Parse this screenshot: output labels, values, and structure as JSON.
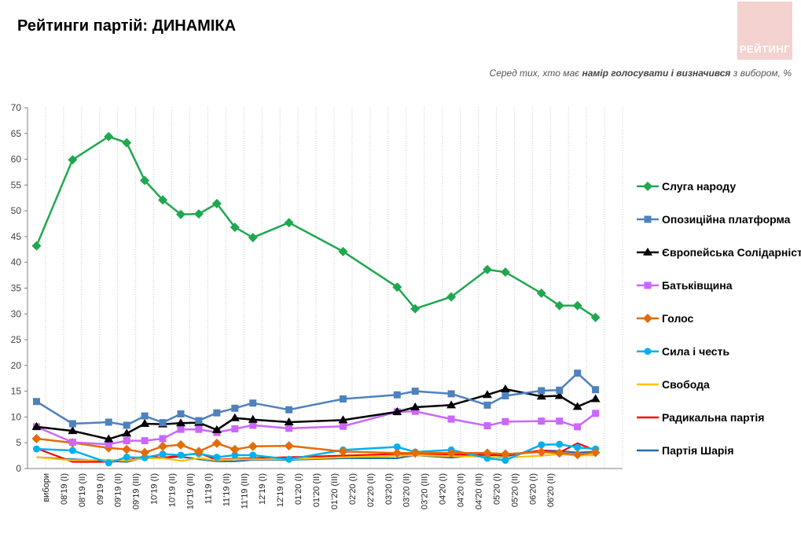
{
  "header": {
    "title": "Рейтинги партій: ДИНАМІКА",
    "logo_text": "РЕЙТИНГ",
    "subtitle_pre": "Серед тих, хто має ",
    "subtitle_bold": "намір голосувати і визначився",
    "subtitle_post": " з вибором, %"
  },
  "chart_data": {
    "type": "line",
    "x": [
      "вибори",
      "08'19 (I)",
      "08'19 (II)",
      "09'19 (I)",
      "09'19 (II)",
      "09'19 (III)",
      "10'19 (I)",
      "10'19 (II)",
      "10'19 (III)",
      "11'19 (I)",
      "11'19 (II)",
      "11'19 (III)",
      "12'19 (I)",
      "12'19 (II)",
      "01'20 (I)",
      "01'20 (II)",
      "01'20 (III)",
      "02'20 (I)",
      "02'20 (II)",
      "03'20 (I)",
      "03'20 (II)",
      "03'20 (III)",
      "04'20 (I)",
      "04'20 (II)",
      "04'20 (III)",
      "05'20 (I)",
      "05'20 (II)",
      "06'20 (I)",
      "06'20 (II)"
    ],
    "ylim": [
      0,
      70
    ],
    "yticks": [
      0,
      5,
      10,
      15,
      20,
      25,
      30,
      35,
      40,
      45,
      50,
      55,
      60,
      65,
      70
    ],
    "grid": "vertical dotted",
    "legend": "right",
    "series": [
      {
        "name": "Слуга народу",
        "color": "#1fa84f",
        "marker": "diamond",
        "points": [
          [
            0,
            43.2
          ],
          [
            2,
            59.9
          ],
          [
            4,
            64.4
          ],
          [
            5,
            63.2
          ],
          [
            6,
            55.9
          ],
          [
            7,
            52.1
          ],
          [
            8,
            49.3
          ],
          [
            9,
            49.4
          ],
          [
            10,
            51.4
          ],
          [
            11,
            46.8
          ],
          [
            12,
            44.8
          ],
          [
            14,
            47.7
          ],
          [
            17,
            42.1
          ],
          [
            20,
            35.2
          ],
          [
            21,
            31.0
          ],
          [
            23,
            33.3
          ],
          [
            25,
            38.6
          ],
          [
            26,
            38.1
          ],
          [
            28,
            34.0
          ],
          [
            29,
            31.6
          ],
          [
            30,
            31.6
          ],
          [
            31,
            29.3
          ]
        ]
      },
      {
        "name": "Опозиційна платформа",
        "color": "#4f81bd",
        "marker": "square",
        "points": [
          [
            0,
            13.0
          ],
          [
            2,
            8.7
          ],
          [
            4,
            9.0
          ],
          [
            5,
            8.4
          ],
          [
            6,
            10.2
          ],
          [
            7,
            8.9
          ],
          [
            8,
            10.6
          ],
          [
            9,
            9.3
          ],
          [
            10,
            10.8
          ],
          [
            11,
            11.7
          ],
          [
            12,
            12.7
          ],
          [
            14,
            11.4
          ],
          [
            17,
            13.5
          ],
          [
            20,
            14.3
          ],
          [
            21,
            15.0
          ],
          [
            23,
            14.5
          ],
          [
            25,
            12.3
          ],
          [
            26,
            14.1
          ],
          [
            28,
            15.1
          ],
          [
            29,
            15.2
          ],
          [
            30,
            18.5
          ],
          [
            31,
            15.3
          ]
        ]
      },
      {
        "name": "Європейська Солідарність",
        "color": "#000000",
        "marker": "triangle",
        "points": [
          [
            0,
            8.1
          ],
          [
            2,
            7.3
          ],
          [
            4,
            5.7
          ],
          [
            5,
            6.8
          ],
          [
            6,
            8.7
          ],
          [
            7,
            8.6
          ],
          [
            8,
            8.8
          ],
          [
            9,
            8.9
          ],
          [
            10,
            7.5
          ],
          [
            11,
            9.8
          ],
          [
            12,
            9.5
          ],
          [
            14,
            9.0
          ],
          [
            17,
            9.4
          ],
          [
            20,
            11.0
          ],
          [
            21,
            11.9
          ],
          [
            23,
            12.3
          ],
          [
            25,
            14.3
          ],
          [
            26,
            15.4
          ],
          [
            28,
            14.0
          ],
          [
            29,
            14.1
          ],
          [
            30,
            12.0
          ],
          [
            31,
            13.5
          ]
        ]
      },
      {
        "name": "Батьківщина",
        "color": "#cc66ff",
        "marker": "square",
        "points": [
          [
            0,
            8.1
          ],
          [
            2,
            5.1
          ],
          [
            4,
            4.7
          ],
          [
            5,
            5.4
          ],
          [
            6,
            5.4
          ],
          [
            7,
            5.8
          ],
          [
            8,
            7.6
          ],
          [
            9,
            7.6
          ],
          [
            10,
            7.0
          ],
          [
            11,
            7.7
          ],
          [
            12,
            8.4
          ],
          [
            14,
            7.8
          ],
          [
            17,
            8.2
          ],
          [
            20,
            11.0
          ],
          [
            21,
            11.1
          ],
          [
            23,
            9.6
          ],
          [
            25,
            8.3
          ],
          [
            26,
            9.1
          ],
          [
            28,
            9.2
          ],
          [
            29,
            9.2
          ],
          [
            30,
            8.1
          ],
          [
            31,
            10.7
          ]
        ]
      },
      {
        "name": "Голос",
        "color": "#e36c09",
        "marker": "diamond",
        "points": [
          [
            0,
            5.8
          ],
          [
            2,
            5.0
          ],
          [
            4,
            4.0
          ],
          [
            5,
            3.7
          ],
          [
            6,
            3.1
          ],
          [
            7,
            4.3
          ],
          [
            8,
            4.6
          ],
          [
            9,
            3.3
          ],
          [
            10,
            4.9
          ],
          [
            11,
            3.7
          ],
          [
            12,
            4.3
          ],
          [
            14,
            4.4
          ],
          [
            17,
            3.3
          ],
          [
            20,
            3.0
          ],
          [
            21,
            3.0
          ],
          [
            23,
            3.0
          ],
          [
            25,
            3.0
          ],
          [
            26,
            2.8
          ],
          [
            28,
            3.2
          ],
          [
            29,
            3.0
          ],
          [
            30,
            2.7
          ],
          [
            31,
            3.1
          ]
        ]
      },
      {
        "name": "Сила і честь",
        "color": "#00b0f0",
        "marker": "circle",
        "points": [
          [
            0,
            3.8
          ],
          [
            2,
            3.5
          ],
          [
            4,
            1.1
          ],
          [
            5,
            2.2
          ],
          [
            6,
            2.1
          ],
          [
            7,
            2.8
          ],
          [
            8,
            2.6
          ],
          [
            9,
            2.9
          ],
          [
            10,
            2.2
          ],
          [
            11,
            2.6
          ],
          [
            12,
            2.6
          ],
          [
            14,
            1.8
          ],
          [
            17,
            3.6
          ],
          [
            20,
            4.2
          ],
          [
            21,
            3.2
          ],
          [
            23,
            3.6
          ],
          [
            25,
            2.0
          ],
          [
            26,
            1.6
          ],
          [
            28,
            4.6
          ],
          [
            29,
            4.7
          ],
          [
            30,
            4.1
          ],
          [
            31,
            3.8
          ]
        ]
      },
      {
        "name": "Свобода",
        "color": "#ffc000",
        "marker": "none",
        "points": [
          [
            0,
            2.2
          ],
          [
            2,
            1.6
          ],
          [
            4,
            1.7
          ],
          [
            5,
            1.5
          ],
          [
            6,
            2.0
          ],
          [
            7,
            2.0
          ],
          [
            8,
            1.5
          ],
          [
            9,
            2.0
          ],
          [
            10,
            1.6
          ],
          [
            11,
            1.8
          ],
          [
            12,
            1.8
          ],
          [
            14,
            1.8
          ],
          [
            17,
            2.2
          ],
          [
            20,
            2.5
          ],
          [
            21,
            2.6
          ],
          [
            23,
            2.4
          ],
          [
            25,
            2.3
          ],
          [
            26,
            2.1
          ],
          [
            28,
            2.5
          ],
          [
            29,
            2.8
          ],
          [
            30,
            2.5
          ],
          [
            31,
            2.6
          ]
        ]
      },
      {
        "name": "Радикальна партія",
        "color": "#ff0000",
        "marker": "none",
        "points": [
          [
            0,
            3.9
          ],
          [
            2,
            1.3
          ],
          [
            4,
            1.3
          ],
          [
            5,
            1.5
          ],
          [
            6,
            2.4
          ],
          [
            7,
            2.1
          ],
          [
            8,
            2.5
          ],
          [
            9,
            3.0
          ],
          [
            10,
            1.7
          ],
          [
            11,
            1.9
          ],
          [
            12,
            2.0
          ],
          [
            14,
            2.2
          ],
          [
            17,
            2.5
          ],
          [
            20,
            2.8
          ],
          [
            21,
            2.9
          ],
          [
            23,
            2.7
          ],
          [
            25,
            2.6
          ],
          [
            26,
            2.6
          ],
          [
            28,
            3.5
          ],
          [
            29,
            3.1
          ],
          [
            30,
            4.9
          ],
          [
            31,
            3.5
          ]
        ]
      },
      {
        "name": "Партія Шарія",
        "color": "#1f6eaa",
        "marker": "none",
        "points": [
          [
            0,
            2.2
          ],
          [
            2,
            1.8
          ],
          [
            4,
            1.5
          ],
          [
            5,
            1.3
          ],
          [
            6,
            2.1
          ],
          [
            7,
            2.0
          ],
          [
            8,
            2.3
          ],
          [
            9,
            1.8
          ],
          [
            10,
            1.4
          ],
          [
            11,
            1.4
          ],
          [
            12,
            1.7
          ],
          [
            14,
            1.7
          ],
          [
            17,
            2.0
          ],
          [
            20,
            2.0
          ],
          [
            21,
            2.6
          ],
          [
            23,
            2.1
          ],
          [
            25,
            2.8
          ],
          [
            26,
            2.4
          ],
          [
            28,
            3.5
          ],
          [
            29,
            3.4
          ],
          [
            30,
            3.1
          ],
          [
            31,
            3.3
          ]
        ]
      }
    ]
  }
}
